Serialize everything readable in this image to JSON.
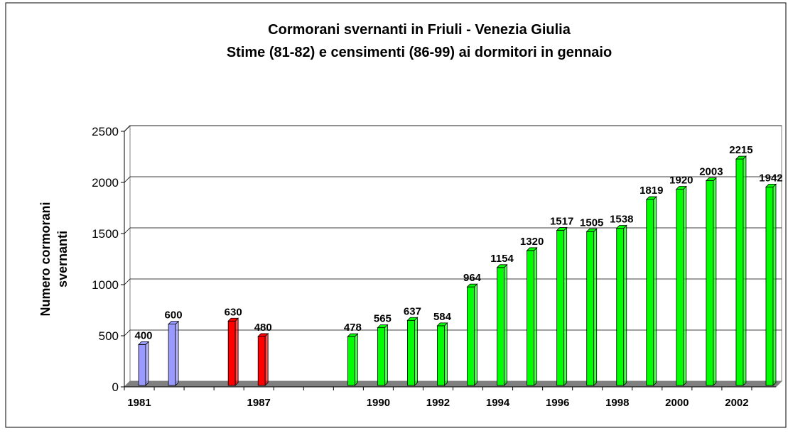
{
  "chart_data": {
    "type": "bar",
    "title": [
      "Cormorani svernanti in Friuli - Venezia Giulia",
      "Stime (81-82) e censimenti (86-99) ai dormitori in gennaio"
    ],
    "ylabel": [
      "Numero cormorani",
      "svernanti"
    ],
    "categories": [
      "1981",
      null,
      null,
      null,
      "1987",
      null,
      null,
      null,
      "1990",
      null,
      "1992",
      null,
      "1994",
      null,
      "1996",
      null,
      "1998",
      null,
      "2000",
      null,
      "2002",
      null
    ],
    "values": [
      400,
      600,
      null,
      630,
      480,
      null,
      null,
      478,
      565,
      637,
      584,
      964,
      1154,
      1320,
      1517,
      1505,
      1538,
      1819,
      1920,
      2003,
      2215,
      1942
    ],
    "colors": [
      "#9999ff",
      "#9999ff",
      null,
      "#ff0000",
      "#ff0000",
      null,
      null,
      "#00ff00",
      "#00ff00",
      "#00ff00",
      "#00ff00",
      "#00ff00",
      "#00ff00",
      "#00ff00",
      "#00ff00",
      "#00ff00",
      "#00ff00",
      "#00ff00",
      "#00ff00",
      "#00ff00",
      "#00ff00",
      "#00ff00"
    ],
    "ylim": [
      0,
      2500
    ],
    "yticks": [
      0,
      500,
      1000,
      1500,
      2000,
      2500
    ],
    "grid": true
  }
}
